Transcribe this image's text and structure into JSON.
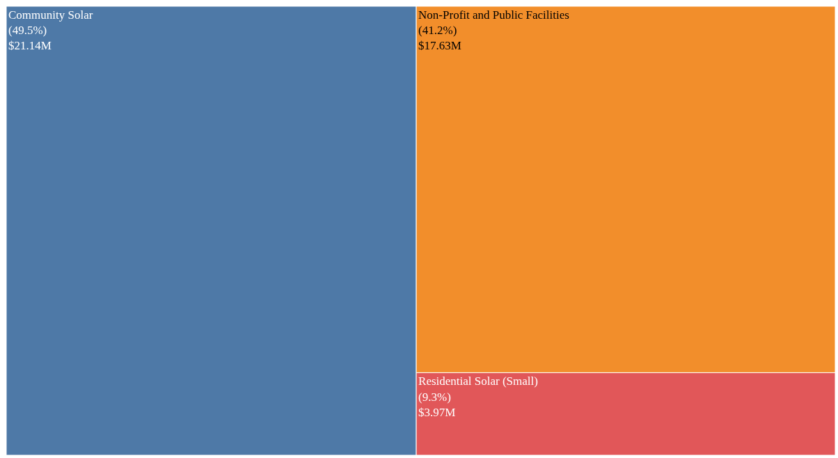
{
  "chart_data": {
    "type": "other",
    "categories": [
      "Community Solar",
      "Non-Profit and Public Facilities",
      "Residential Solar (Small)"
    ],
    "values": [
      21.14,
      17.63,
      3.97
    ],
    "value_labels": [
      "$21.14M",
      "$17.63M",
      "$3.97M"
    ],
    "annotations": [
      "(49.5%)",
      "(41.2%)",
      "(9.3%)"
    ],
    "colors": [
      "#4e79a7",
      "#f28e2b",
      "#e15759"
    ]
  }
}
